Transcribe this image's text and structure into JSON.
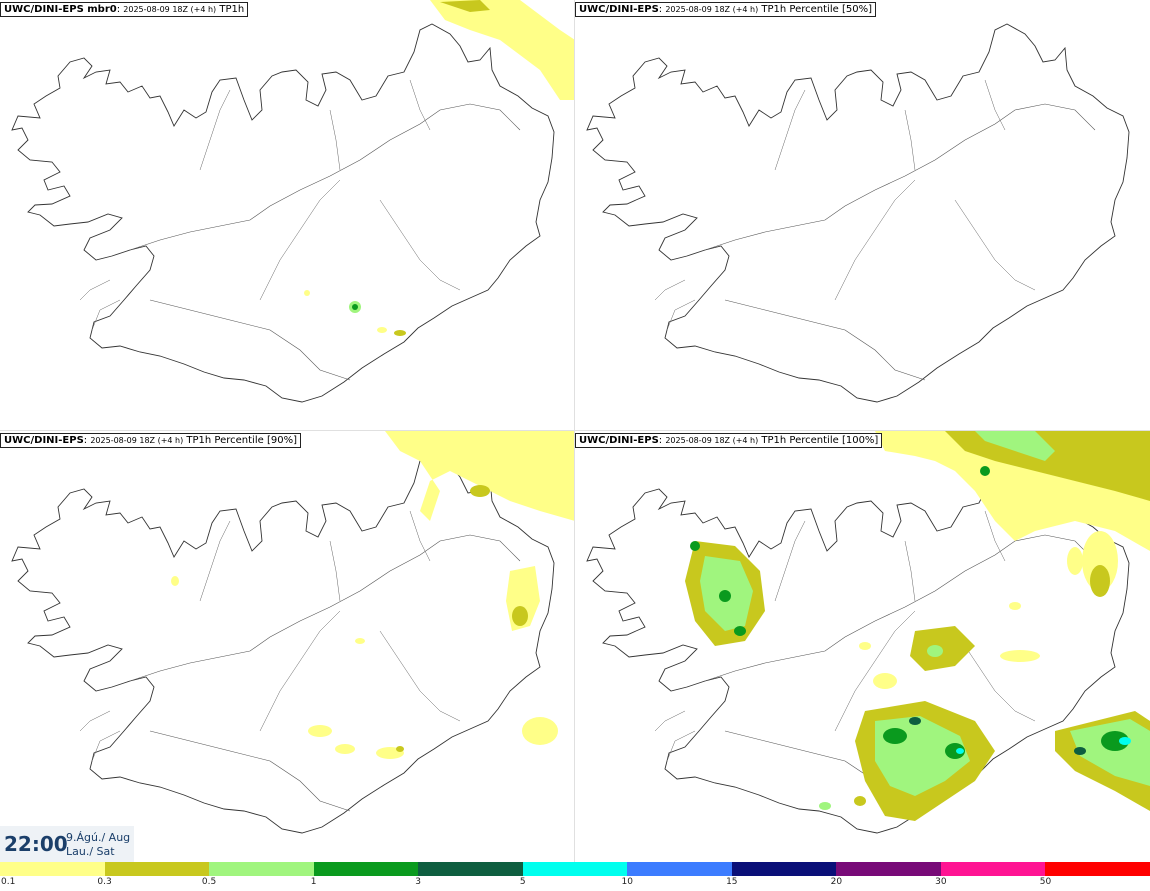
{
  "panels": [
    {
      "model": "UWC/DINI-EPS mbr0",
      "meta": "2025-08-09 18Z (+4 h)",
      "field": "TP1h"
    },
    {
      "model": "UWC/DINI-EPS",
      "meta": "2025-08-09 18Z (+4 h)",
      "field": "TP1h Percentile [50%]"
    },
    {
      "model": "UWC/DINI-EPS",
      "meta": "2025-08-09 18Z (+4 h)",
      "field": "TP1h Percentile [90%]"
    },
    {
      "model": "UWC/DINI-EPS",
      "meta": "2025-08-09 18Z (+4 h)",
      "field": "TP1h Percentile [100%]"
    }
  ],
  "valid_time": {
    "time": "22:00",
    "date": "9.Ágú./ Aug",
    "day": "Lau./ Sat"
  },
  "colorbar": {
    "labels": [
      "0.1",
      "0.3",
      "0.5",
      "1",
      "3",
      "5",
      "10",
      "15",
      "20",
      "30",
      "50"
    ],
    "colors": [
      "#ffff88",
      "#c8c81e",
      "#a0f57e",
      "#0a9a1e",
      "#0e5e40",
      "#00ffee",
      "#3c7cff",
      "#0a0f78",
      "#780a78",
      "#ff1493",
      "#ff0000"
    ]
  },
  "chart_data": {
    "type": "heatmap",
    "title": "TP1h",
    "units_scale": [
      0.1,
      0.3,
      0.5,
      1,
      3,
      5,
      10,
      15,
      20,
      30,
      50
    ]
  }
}
